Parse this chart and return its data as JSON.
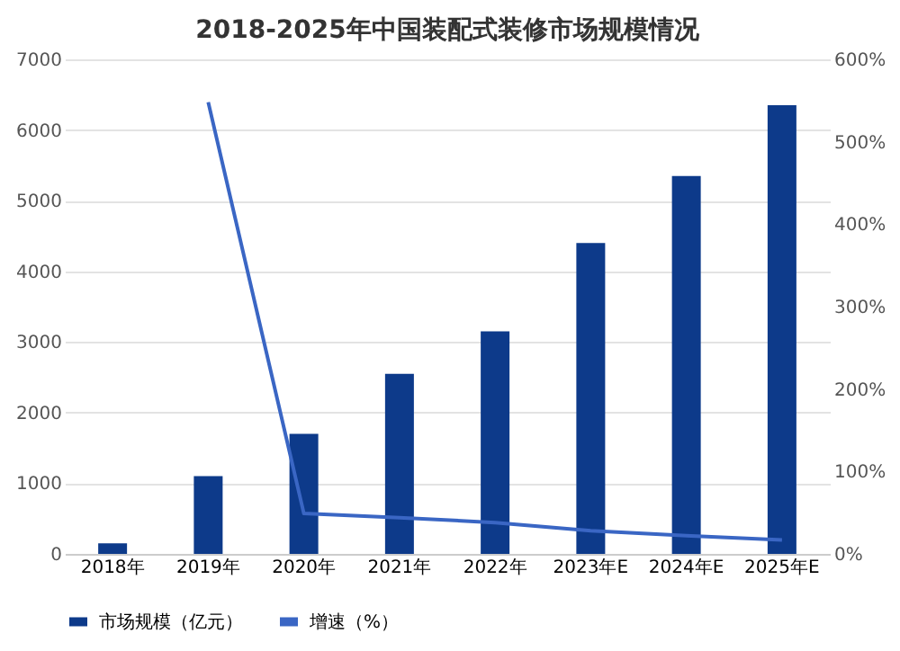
{
  "chart_data": {
    "type": "bar",
    "title": "2018-2025年中国装配式装修市场规模情况",
    "categories": [
      "2018年",
      "2019年",
      "2020年",
      "2021年",
      "2022年",
      "2023年E",
      "2024年E",
      "2025年E"
    ],
    "series": [
      {
        "name": "市场规模（亿元）",
        "color": "#0d3a8a",
        "values": [
          150,
          1100,
          1700,
          2550,
          3150,
          4400,
          5350,
          6350
        ]
      },
      {
        "name": "增速（%）",
        "type": "line",
        "axis": "y2",
        "color": "#3a66c4",
        "values": [
          null,
          548,
          49,
          44,
          38,
          28,
          22,
          17
        ]
      }
    ],
    "ylim": [
      0,
      7000
    ],
    "yticks": [
      0,
      1000,
      2000,
      3000,
      4000,
      5000,
      6000,
      7000
    ],
    "y2lim": [
      0,
      600
    ],
    "y2ticks": [
      {
        "value": 0,
        "label": "0%"
      },
      {
        "value": 100,
        "label": "100%"
      },
      {
        "value": 200,
        "label": "200%"
      },
      {
        "value": 300,
        "label": "300%"
      },
      {
        "value": 400,
        "label": "400%"
      },
      {
        "value": 500,
        "label": "500%"
      },
      {
        "value": 600,
        "label": "600%"
      }
    ],
    "grid": "y",
    "legend": "bottom",
    "marker": "none",
    "line_style": "solid"
  }
}
